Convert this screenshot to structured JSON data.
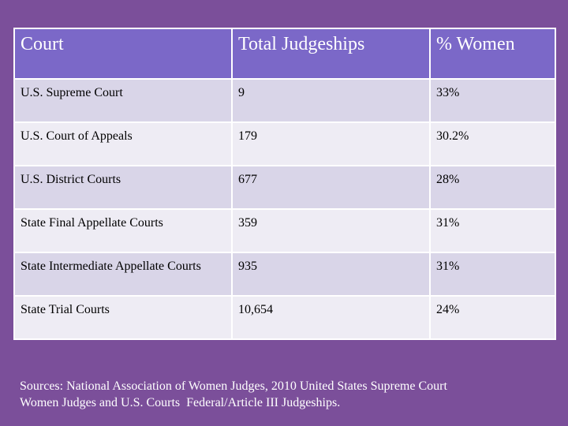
{
  "table": {
    "headers": [
      "Court",
      "Total Judgeships",
      "% Women"
    ],
    "rows": [
      [
        "U.S. Supreme Court",
        "9",
        "33%"
      ],
      [
        "U.S. Court of Appeals",
        "179",
        "30.2%"
      ],
      [
        "U.S. District Courts",
        "677",
        "28%"
      ],
      [
        "State Final Appellate Courts",
        "359",
        "31%"
      ],
      [
        "State Intermediate Appellate Courts",
        "935",
        "31%"
      ],
      [
        "State Trial Courts",
        "10,654",
        "24%"
      ]
    ]
  },
  "sources": {
    "line1": "Sources: National Association of Women Judges, 2010 United States Supreme Court",
    "line2": "Women Judges and U.S. Courts  Federal/Article III Judgeships."
  },
  "colors": {
    "background": "#7b4f9a",
    "header": "#7b68c8",
    "row_dark": "#d9d5e8",
    "row_light": "#eeecf4"
  }
}
